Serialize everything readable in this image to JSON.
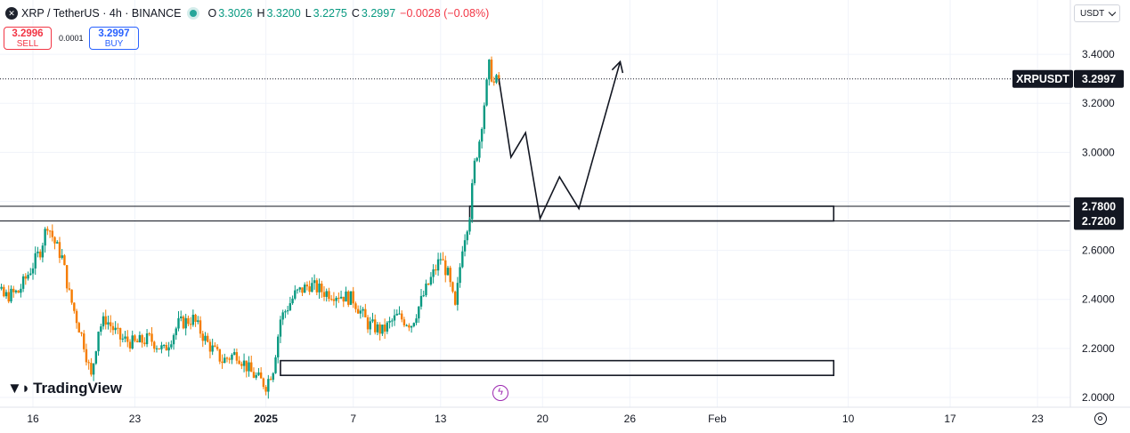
{
  "header": {
    "symbol": "XRP / TetherUS · 4h · BINANCE",
    "open_label": "O",
    "open": "3.3026",
    "high_label": "H",
    "high": "3.3200",
    "low_label": "L",
    "low": "3.2275",
    "close_label": "C",
    "close": "3.2997",
    "change": "−0.0028 (−0.08%)"
  },
  "trade": {
    "sell_price": "3.2996",
    "sell_label": "SELL",
    "spread": "0.0001",
    "buy_price": "3.2997",
    "buy_label": "BUY"
  },
  "currency": "USDT",
  "brand": "TradingView",
  "colors": {
    "up": "#089981",
    "down": "#f57c00",
    "last_label_bg": "#131722"
  },
  "icons": [
    "xrp-logo-icon",
    "market-open-icon",
    "chevron-down-icon",
    "tradingview-logo-icon",
    "lightning-icon",
    "settings-icon"
  ],
  "chart_data": {
    "type": "candlestick",
    "symbol_label": "XRPUSDT",
    "last_price": "3.2997",
    "ylim": [
      1.96,
      3.52
    ],
    "y_ticks": [
      "3.4000",
      "3.2000",
      "3.0000",
      "2.8000",
      "2.6000",
      "2.4000",
      "2.2000",
      "2.0000"
    ],
    "y_tick_values": [
      3.4,
      3.2,
      3.0,
      2.8,
      2.6,
      2.4,
      2.2,
      2.0
    ],
    "x_tick_labels": [
      "16",
      "23",
      "2025",
      "7",
      "13",
      "20",
      "26",
      "Feb",
      "10",
      "17",
      "23"
    ],
    "x_tick_dates": [
      "2024-12-16",
      "2024-12-23",
      "2025-01-01",
      "2025-01-07",
      "2025-01-13",
      "2025-01-20",
      "2025-01-26",
      "2025-02-01",
      "2025-02-10",
      "2025-02-17",
      "2025-02-23"
    ],
    "price_levels": [
      {
        "value": 2.78,
        "label": "2.7800"
      },
      {
        "value": 2.72,
        "label": "2.7200"
      }
    ],
    "zones": [
      {
        "start": "2025-01-15",
        "end": "2025-02-09",
        "top": 2.78,
        "bottom": 2.72
      },
      {
        "start": "2025-01-02",
        "end": "2025-02-09",
        "top": 2.15,
        "bottom": 2.09
      }
    ],
    "projection_path": [
      {
        "date": "2025-01-17 00:00",
        "price": 3.3
      },
      {
        "date": "2025-01-17 20:00",
        "price": 2.98
      },
      {
        "date": "2025-01-18 20:00",
        "price": 3.08
      },
      {
        "date": "2025-01-19 20:00",
        "price": 2.73
      },
      {
        "date": "2025-01-21 04:00",
        "price": 2.9
      },
      {
        "date": "2025-01-22 12:00",
        "price": 2.77
      },
      {
        "date": "2025-01-25 08:00",
        "price": 3.37
      }
    ],
    "series": [
      {
        "date": "2024-12-12",
        "close": 2.42
      },
      {
        "date": "2024-12-13",
        "close": 2.48
      },
      {
        "date": "2024-12-14",
        "close": 2.41
      },
      {
        "date": "2024-12-15",
        "close": 2.43
      },
      {
        "date": "2024-12-16",
        "close": 2.54
      },
      {
        "date": "2024-12-16 12:00",
        "close": 2.6
      },
      {
        "date": "2024-12-17",
        "close": 2.71
      },
      {
        "date": "2024-12-17 12:00",
        "close": 2.63
      },
      {
        "date": "2024-12-18",
        "close": 2.57
      },
      {
        "date": "2024-12-18 12:00",
        "close": 2.42
      },
      {
        "date": "2024-12-19",
        "close": 2.32
      },
      {
        "date": "2024-12-19 12:00",
        "close": 2.22
      },
      {
        "date": "2024-12-20",
        "close": 2.08
      },
      {
        "date": "2024-12-20 12:00",
        "close": 2.28
      },
      {
        "date": "2024-12-21",
        "close": 2.32
      },
      {
        "date": "2024-12-22",
        "close": 2.24
      },
      {
        "date": "2024-12-23",
        "close": 2.22
      },
      {
        "date": "2024-12-24",
        "close": 2.24
      },
      {
        "date": "2024-12-25",
        "close": 2.19
      },
      {
        "date": "2024-12-26",
        "close": 2.3
      },
      {
        "date": "2024-12-27",
        "close": 2.32
      },
      {
        "date": "2024-12-28",
        "close": 2.22
      },
      {
        "date": "2024-12-29",
        "close": 2.15
      },
      {
        "date": "2024-12-30",
        "close": 2.18
      },
      {
        "date": "2024-12-31",
        "close": 2.1
      },
      {
        "date": "2025-01-01",
        "close": 2.05
      },
      {
        "date": "2025-01-01 12:00",
        "close": 2.12
      },
      {
        "date": "2025-01-02",
        "close": 2.32
      },
      {
        "date": "2025-01-03",
        "close": 2.42
      },
      {
        "date": "2025-01-04",
        "close": 2.46
      },
      {
        "date": "2025-01-05",
        "close": 2.43
      },
      {
        "date": "2025-01-06",
        "close": 2.42
      },
      {
        "date": "2025-01-07",
        "close": 2.4
      },
      {
        "date": "2025-01-08",
        "close": 2.3
      },
      {
        "date": "2025-01-09",
        "close": 2.27
      },
      {
        "date": "2025-01-10",
        "close": 2.33
      },
      {
        "date": "2025-01-11",
        "close": 2.3
      },
      {
        "date": "2025-01-12",
        "close": 2.44
      },
      {
        "date": "2025-01-13",
        "close": 2.57
      },
      {
        "date": "2025-01-13 12:00",
        "close": 2.5
      },
      {
        "date": "2025-01-14",
        "close": 2.36
      },
      {
        "date": "2025-01-14 12:00",
        "close": 2.62
      },
      {
        "date": "2025-01-15",
        "close": 2.75
      },
      {
        "date": "2025-01-15 08:00",
        "close": 2.95
      },
      {
        "date": "2025-01-15 16:00",
        "close": 3.05
      },
      {
        "date": "2025-01-16",
        "close": 3.2
      },
      {
        "date": "2025-01-16 08:00",
        "close": 3.35
      },
      {
        "date": "2025-01-16 16:00",
        "close": 3.28
      },
      {
        "date": "2025-01-17",
        "close": 3.3
      }
    ]
  }
}
